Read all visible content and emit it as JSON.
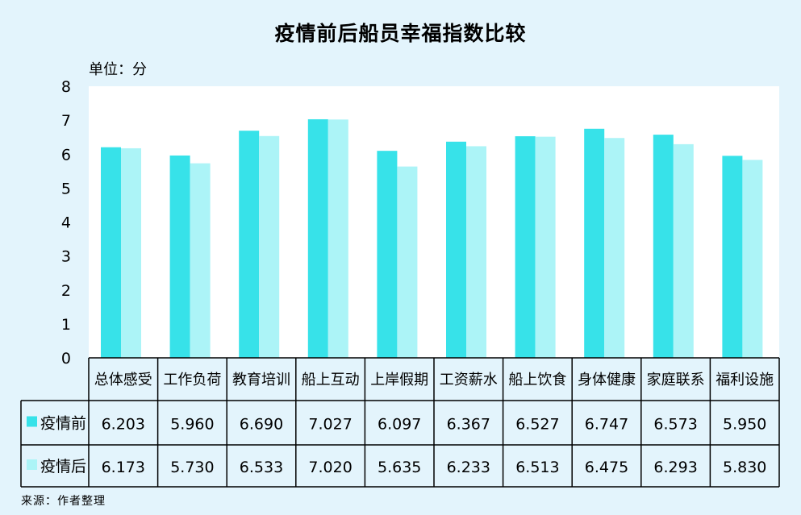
{
  "chart_data": {
    "type": "bar",
    "title": "疫情前后船员幸福指数比较",
    "unit": "单位：分",
    "source": "来源：作者整理",
    "categories": [
      "总体感受",
      "工作负荷",
      "教育培训",
      "船上互动",
      "上岸假期",
      "工资薪水",
      "船上饮食",
      "身体健康",
      "家庭联系",
      "福利设施"
    ],
    "series": [
      {
        "name": "疫情前",
        "color": "#37e2e9",
        "values": [
          6.203,
          5.96,
          6.69,
          7.027,
          6.097,
          6.367,
          6.527,
          6.747,
          6.573,
          5.95
        ],
        "labels": [
          "6.203",
          "5.960",
          "6.690",
          "7.027",
          "6.097",
          "6.367",
          "6.527",
          "6.747",
          "6.573",
          "5.950"
        ]
      },
      {
        "name": "疫情后",
        "color": "#acf4f7",
        "values": [
          6.173,
          5.73,
          6.533,
          7.02,
          5.635,
          6.233,
          6.513,
          6.475,
          6.293,
          5.83
        ],
        "labels": [
          "6.173",
          "5.730",
          "6.533",
          "7.020",
          "5.635",
          "6.233",
          "6.513",
          "6.475",
          "6.293",
          "5.830"
        ]
      }
    ],
    "ylim": [
      0,
      8
    ],
    "yticks": [
      "0",
      "1",
      "2",
      "3",
      "4",
      "5",
      "6",
      "7",
      "8"
    ],
    "grid": false,
    "legend": "data-table"
  }
}
